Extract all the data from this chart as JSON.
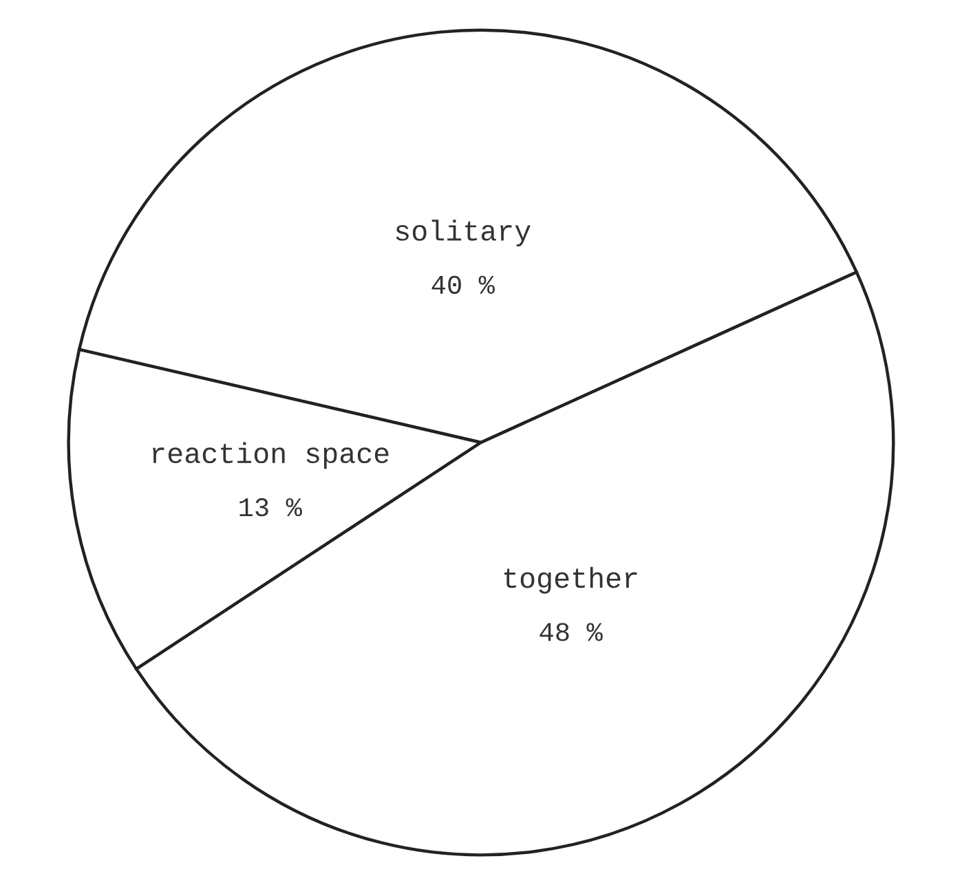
{
  "chart_data": {
    "type": "pie",
    "categories": [
      "solitary",
      "reaction space",
      "together"
    ],
    "values": [
      40,
      13,
      48
    ],
    "value_labels": [
      "40 %",
      "13 %",
      "48 %"
    ],
    "colors": [
      "#ffffff",
      "#ffffff",
      "#ffffff"
    ]
  }
}
